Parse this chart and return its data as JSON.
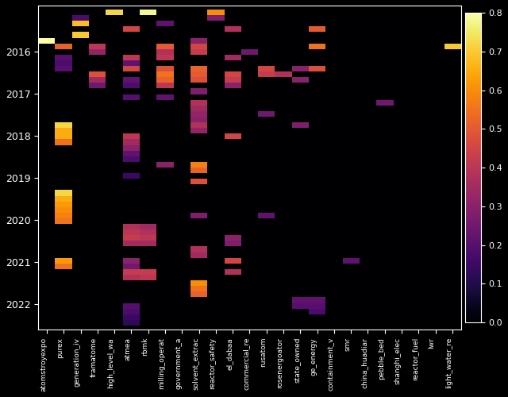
{
  "x_labels": [
    "atomstroyexpo",
    "purex",
    "generation_iv",
    "framatome",
    "high_level_wa",
    "atmea",
    "rbmk",
    "milling_operat",
    "government_a",
    "solvent_extrac",
    "reactor_safety",
    "el_dabaa",
    "commercial_re",
    "rusatom",
    "rosenergoator",
    "state_owned",
    "ge_energy",
    "containment_v",
    "smr",
    "china_huadiar",
    "pebble_bed",
    "shanghi_elec",
    "reactor_fuel",
    "lwr",
    "light_water_re"
  ],
  "y_ticks_labels": [
    "2016",
    "2017",
    "2018",
    "2019",
    "2020",
    "2021",
    "2022"
  ],
  "vmin": 0.0,
  "vmax": 0.8,
  "colormap": "inferno",
  "fig_width": 6.4,
  "fig_height": 5.0,
  "dpi": 100,
  "background_color": "#000000",
  "n_rows": 56,
  "n_cols": 25,
  "year_start": 2015.0,
  "year_step": 0.125,
  "data_entries": [
    {
      "row": 0,
      "col": 4,
      "val": 0.72
    },
    {
      "row": 0,
      "col": 6,
      "val": 0.78
    },
    {
      "row": 0,
      "col": 10,
      "val": 0.6
    },
    {
      "row": 1,
      "col": 2,
      "val": 0.18
    },
    {
      "row": 1,
      "col": 10,
      "val": 0.28
    },
    {
      "row": 2,
      "col": 2,
      "val": 0.68
    },
    {
      "row": 2,
      "col": 7,
      "val": 0.22
    },
    {
      "row": 3,
      "col": 5,
      "val": 0.45
    },
    {
      "row": 3,
      "col": 16,
      "val": 0.5
    },
    {
      "row": 3,
      "col": 11,
      "val": 0.38
    },
    {
      "row": 4,
      "col": 2,
      "val": 0.7
    },
    {
      "row": 5,
      "col": 0,
      "val": 0.8
    },
    {
      "row": 5,
      "col": 9,
      "val": 0.3
    },
    {
      "row": 6,
      "col": 1,
      "val": 0.52
    },
    {
      "row": 6,
      "col": 3,
      "val": 0.4
    },
    {
      "row": 6,
      "col": 7,
      "val": 0.5
    },
    {
      "row": 6,
      "col": 9,
      "val": 0.45
    },
    {
      "row": 6,
      "col": 16,
      "val": 0.55
    },
    {
      "row": 6,
      "col": 24,
      "val": 0.7
    },
    {
      "row": 7,
      "col": 3,
      "val": 0.32
    },
    {
      "row": 7,
      "col": 7,
      "val": 0.38
    },
    {
      "row": 7,
      "col": 9,
      "val": 0.42
    },
    {
      "row": 7,
      "col": 12,
      "val": 0.25
    },
    {
      "row": 8,
      "col": 1,
      "val": 0.2
    },
    {
      "row": 8,
      "col": 5,
      "val": 0.4
    },
    {
      "row": 8,
      "col": 7,
      "val": 0.4
    },
    {
      "row": 8,
      "col": 11,
      "val": 0.35
    },
    {
      "row": 9,
      "col": 1,
      "val": 0.18
    },
    {
      "row": 9,
      "col": 5,
      "val": 0.22
    },
    {
      "row": 10,
      "col": 1,
      "val": 0.2
    },
    {
      "row": 10,
      "col": 5,
      "val": 0.45
    },
    {
      "row": 10,
      "col": 7,
      "val": 0.48
    },
    {
      "row": 10,
      "col": 9,
      "val": 0.52
    },
    {
      "row": 10,
      "col": 13,
      "val": 0.45
    },
    {
      "row": 10,
      "col": 15,
      "val": 0.3
    },
    {
      "row": 10,
      "col": 16,
      "val": 0.48
    },
    {
      "row": 11,
      "col": 3,
      "val": 0.48
    },
    {
      "row": 11,
      "col": 7,
      "val": 0.55
    },
    {
      "row": 11,
      "col": 9,
      "val": 0.5
    },
    {
      "row": 11,
      "col": 11,
      "val": 0.45
    },
    {
      "row": 11,
      "col": 13,
      "val": 0.42
    },
    {
      "row": 11,
      "col": 14,
      "val": 0.38
    },
    {
      "row": 12,
      "col": 3,
      "val": 0.35
    },
    {
      "row": 12,
      "col": 5,
      "val": 0.22
    },
    {
      "row": 12,
      "col": 7,
      "val": 0.52
    },
    {
      "row": 12,
      "col": 9,
      "val": 0.48
    },
    {
      "row": 12,
      "col": 11,
      "val": 0.42
    },
    {
      "row": 12,
      "col": 15,
      "val": 0.3
    },
    {
      "row": 13,
      "col": 3,
      "val": 0.25
    },
    {
      "row": 13,
      "col": 5,
      "val": 0.18
    },
    {
      "row": 13,
      "col": 7,
      "val": 0.4
    },
    {
      "row": 13,
      "col": 11,
      "val": 0.3
    },
    {
      "row": 14,
      "col": 9,
      "val": 0.28
    },
    {
      "row": 15,
      "col": 5,
      "val": 0.2
    },
    {
      "row": 15,
      "col": 7,
      "val": 0.22
    },
    {
      "row": 16,
      "col": 9,
      "val": 0.38
    },
    {
      "row": 16,
      "col": 20,
      "val": 0.25
    },
    {
      "row": 17,
      "col": 9,
      "val": 0.35
    },
    {
      "row": 18,
      "col": 9,
      "val": 0.32
    },
    {
      "row": 18,
      "col": 13,
      "val": 0.25
    },
    {
      "row": 19,
      "col": 9,
      "val": 0.3
    },
    {
      "row": 20,
      "col": 1,
      "val": 0.72
    },
    {
      "row": 20,
      "col": 9,
      "val": 0.38
    },
    {
      "row": 20,
      "col": 15,
      "val": 0.28
    },
    {
      "row": 21,
      "col": 1,
      "val": 0.65
    },
    {
      "row": 21,
      "col": 9,
      "val": 0.32
    },
    {
      "row": 22,
      "col": 1,
      "val": 0.65
    },
    {
      "row": 22,
      "col": 5,
      "val": 0.4
    },
    {
      "row": 22,
      "col": 11,
      "val": 0.45
    },
    {
      "row": 23,
      "col": 1,
      "val": 0.55
    },
    {
      "row": 23,
      "col": 5,
      "val": 0.35
    },
    {
      "row": 24,
      "col": 5,
      "val": 0.3
    },
    {
      "row": 25,
      "col": 5,
      "val": 0.22
    },
    {
      "row": 26,
      "col": 5,
      "val": 0.18
    },
    {
      "row": 27,
      "col": 7,
      "val": 0.3
    },
    {
      "row": 27,
      "col": 9,
      "val": 0.58
    },
    {
      "row": 28,
      "col": 9,
      "val": 0.52
    },
    {
      "row": 29,
      "col": 5,
      "val": 0.15
    },
    {
      "row": 30,
      "col": 9,
      "val": 0.48
    },
    {
      "row": 32,
      "col": 1,
      "val": 0.72
    },
    {
      "row": 33,
      "col": 1,
      "val": 0.65
    },
    {
      "row": 34,
      "col": 1,
      "val": 0.62
    },
    {
      "row": 35,
      "col": 1,
      "val": 0.6
    },
    {
      "row": 36,
      "col": 1,
      "val": 0.58
    },
    {
      "row": 36,
      "col": 9,
      "val": 0.28
    },
    {
      "row": 36,
      "col": 13,
      "val": 0.22
    },
    {
      "row": 37,
      "col": 1,
      "val": 0.55
    },
    {
      "row": 38,
      "col": 5,
      "val": 0.38
    },
    {
      "row": 38,
      "col": 6,
      "val": 0.35
    },
    {
      "row": 39,
      "col": 5,
      "val": 0.4
    },
    {
      "row": 39,
      "col": 6,
      "val": 0.38
    },
    {
      "row": 40,
      "col": 5,
      "val": 0.42
    },
    {
      "row": 40,
      "col": 6,
      "val": 0.4
    },
    {
      "row": 40,
      "col": 11,
      "val": 0.3
    },
    {
      "row": 41,
      "col": 5,
      "val": 0.35
    },
    {
      "row": 41,
      "col": 6,
      "val": 0.35
    },
    {
      "row": 41,
      "col": 11,
      "val": 0.28
    },
    {
      "row": 42,
      "col": 9,
      "val": 0.38
    },
    {
      "row": 43,
      "col": 9,
      "val": 0.35
    },
    {
      "row": 44,
      "col": 1,
      "val": 0.62
    },
    {
      "row": 44,
      "col": 5,
      "val": 0.3
    },
    {
      "row": 44,
      "col": 11,
      "val": 0.45
    },
    {
      "row": 44,
      "col": 18,
      "val": 0.22
    },
    {
      "row": 45,
      "col": 1,
      "val": 0.55
    },
    {
      "row": 45,
      "col": 5,
      "val": 0.25
    },
    {
      "row": 46,
      "col": 5,
      "val": 0.42
    },
    {
      "row": 46,
      "col": 6,
      "val": 0.42
    },
    {
      "row": 46,
      "col": 11,
      "val": 0.38
    },
    {
      "row": 47,
      "col": 5,
      "val": 0.38
    },
    {
      "row": 47,
      "col": 6,
      "val": 0.4
    },
    {
      "row": 48,
      "col": 9,
      "val": 0.6
    },
    {
      "row": 49,
      "col": 9,
      "val": 0.55
    },
    {
      "row": 50,
      "col": 9,
      "val": 0.52
    },
    {
      "row": 51,
      "col": 15,
      "val": 0.22
    },
    {
      "row": 51,
      "col": 16,
      "val": 0.22
    },
    {
      "row": 52,
      "col": 5,
      "val": 0.2
    },
    {
      "row": 52,
      "col": 15,
      "val": 0.2
    },
    {
      "row": 52,
      "col": 16,
      "val": 0.2
    },
    {
      "row": 53,
      "col": 5,
      "val": 0.18
    },
    {
      "row": 53,
      "col": 16,
      "val": 0.18
    },
    {
      "row": 54,
      "col": 5,
      "val": 0.15
    },
    {
      "row": 55,
      "col": 5,
      "val": 0.12
    }
  ]
}
